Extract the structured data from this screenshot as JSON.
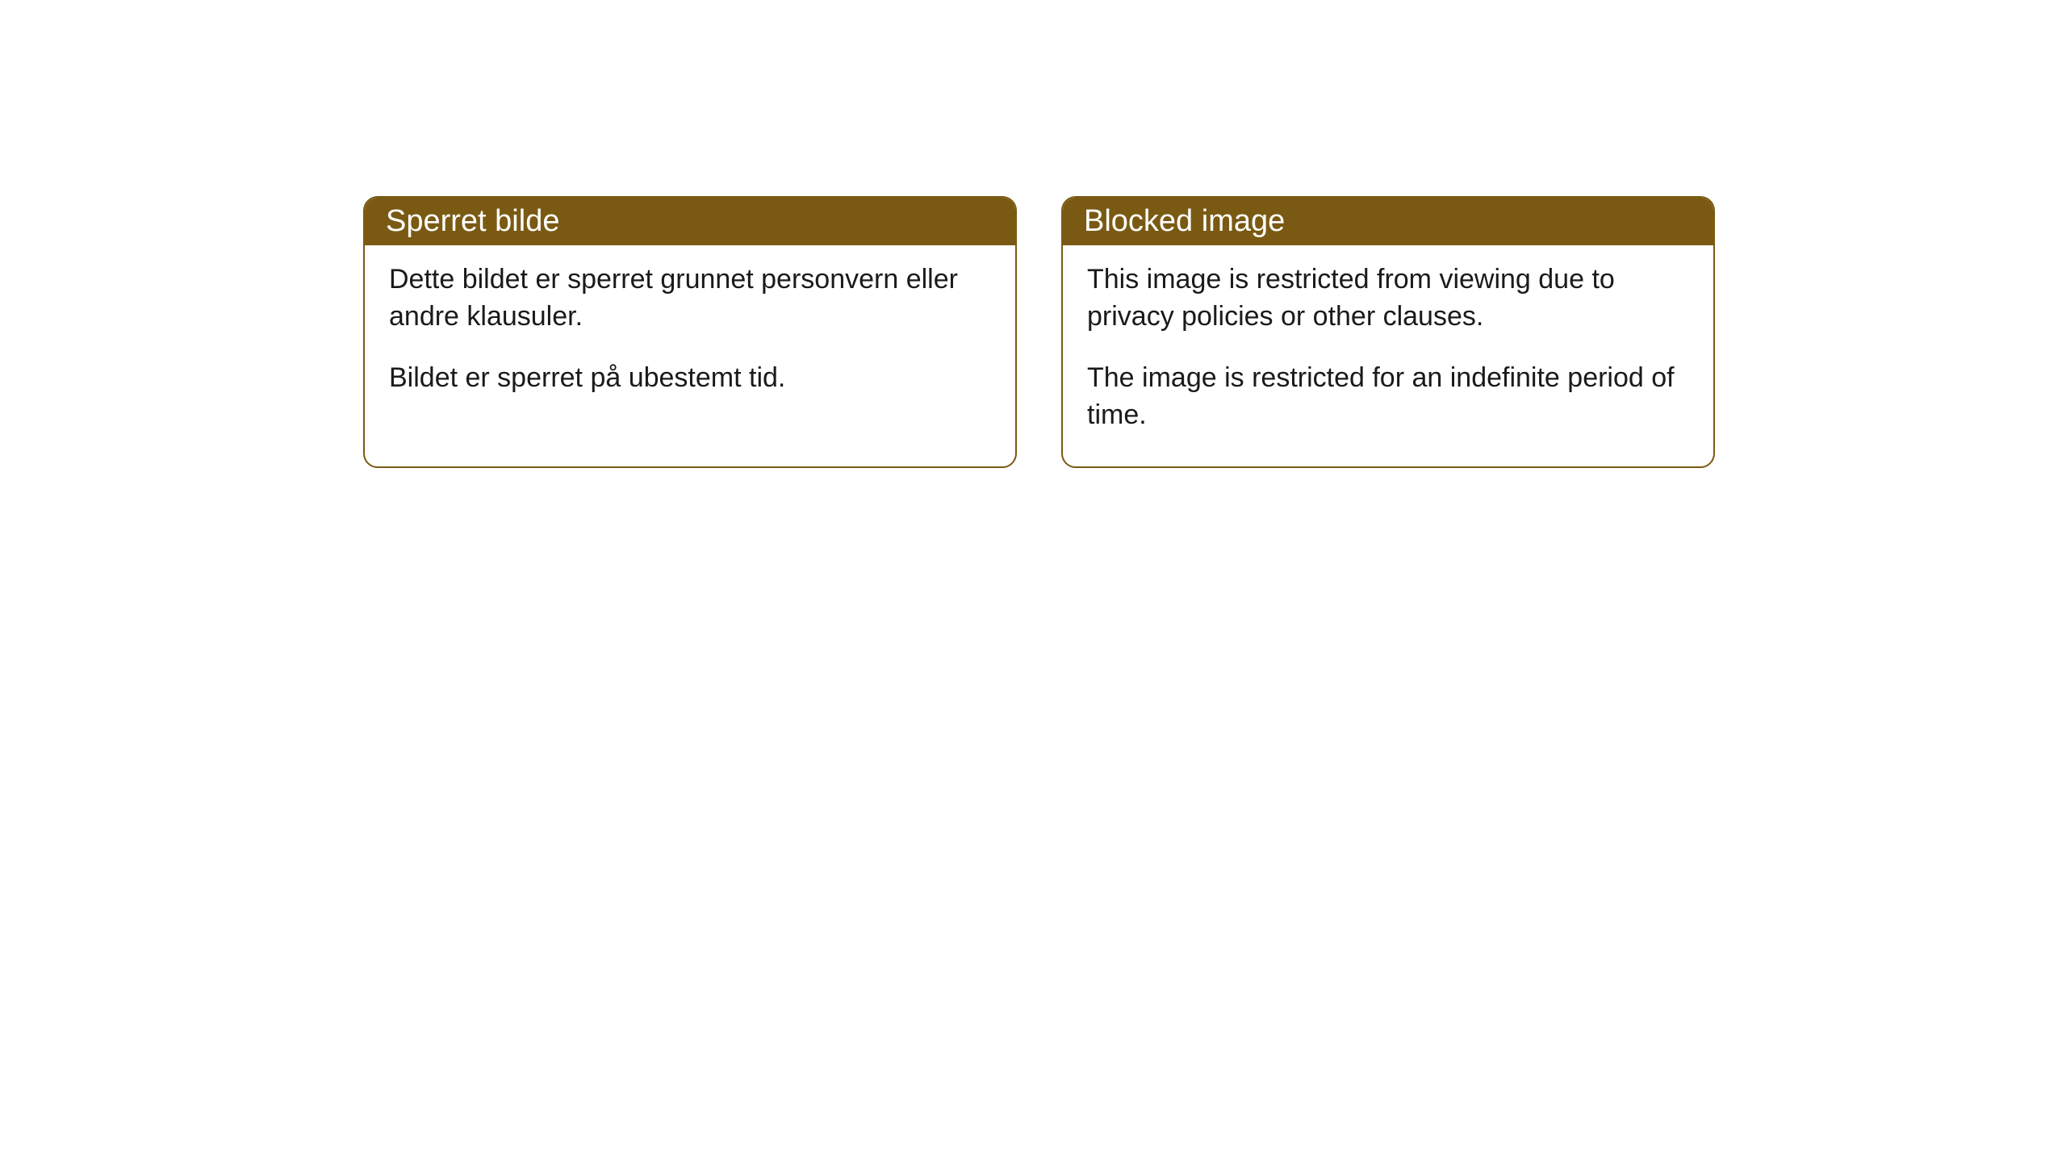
{
  "cards": [
    {
      "title": "Sperret bilde",
      "paragraph1": "Dette bildet er sperret grunnet personvern eller andre klausuler.",
      "paragraph2": "Bildet er sperret på ubestemt tid."
    },
    {
      "title": "Blocked image",
      "paragraph1": "This image is restricted from viewing due to privacy policies or other clauses.",
      "paragraph2": "The image is restricted for an indefinite period of time."
    }
  ],
  "styling": {
    "header_background_color": "#7a5a13",
    "header_text_color": "#ffffff",
    "card_border_color": "#7a5a13",
    "card_background_color": "#ffffff",
    "body_text_color": "#1a1a1a",
    "page_background_color": "#ffffff",
    "border_radius": 18,
    "header_fontsize": 38,
    "body_fontsize": 34
  }
}
